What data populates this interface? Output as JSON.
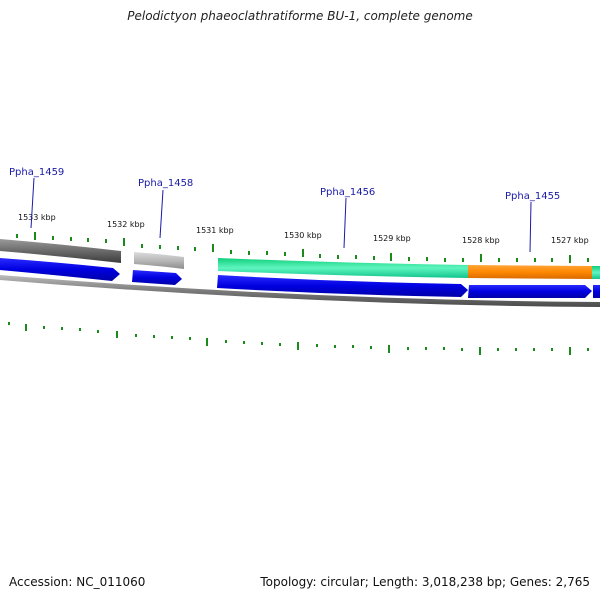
{
  "title": "Pelodictyon phaeoclathratiforme BU-1, complete genome",
  "footer": {
    "accession": "Accession: NC_011060",
    "summary": "Topology: circular; Length: 3,018,238 bp; Genes: 2,765"
  },
  "colors": {
    "gene_dark_gray": "#6e6e6e",
    "gene_light_gray": "#b8b8b8",
    "gene_green": "#2ee8a4",
    "gene_orange": "#ff8a00",
    "strand_blue": "#0000e6",
    "backbone": "#7a7a7a",
    "tick": "#1a8a1a",
    "label_blue": "#1a1aa6"
  },
  "scale_labels": [
    "1533 kbp",
    "1532 kbp",
    "1531 kbp",
    "1530 kbp",
    "1529 kbp",
    "1528 kbp",
    "1527 kbp"
  ],
  "gene_labels": [
    "Ppha_1459",
    "Ppha_1458",
    "Ppha_1456",
    "Ppha_1455"
  ]
}
